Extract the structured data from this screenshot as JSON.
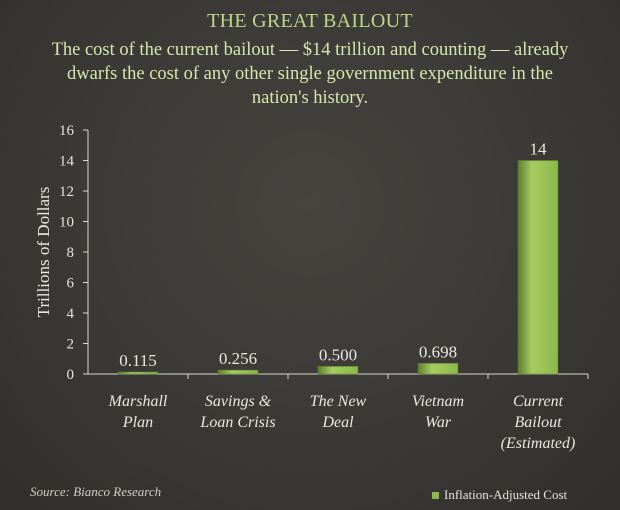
{
  "chart_data": {
    "type": "bar",
    "title": "THE GREAT BAILOUT",
    "subtitle": "The cost of the current bailout — $14 trillion and counting — already dwarfs the cost of any other single government expenditure in the nation's history.",
    "categories": [
      [
        "Marshall",
        "Plan"
      ],
      [
        "Savings &",
        "Loan Crisis"
      ],
      [
        "The New",
        "Deal"
      ],
      [
        "Vietnam",
        "War"
      ],
      [
        "Current",
        "Bailout",
        "(Estimated)"
      ]
    ],
    "values": [
      0.115,
      0.256,
      0.5,
      0.698,
      14
    ],
    "value_labels": [
      "0.115",
      "0.256",
      "0.500",
      "0.698",
      "14"
    ],
    "ylabel": "Trillions of Dollars",
    "ylim": [
      0,
      16
    ],
    "yticks": [
      0,
      2,
      4,
      6,
      8,
      10,
      12,
      14,
      16
    ],
    "legend": {
      "label": "Inflation-Adjusted Cost",
      "placement": "bottom-right"
    },
    "source": "Source: Bianco Research",
    "grid": false,
    "colors": {
      "bar": "#8cb84a",
      "bar_highlight": "#a6cc62",
      "bar_shadow": "#5f7f2e",
      "axis": "#d8d8d0"
    }
  }
}
